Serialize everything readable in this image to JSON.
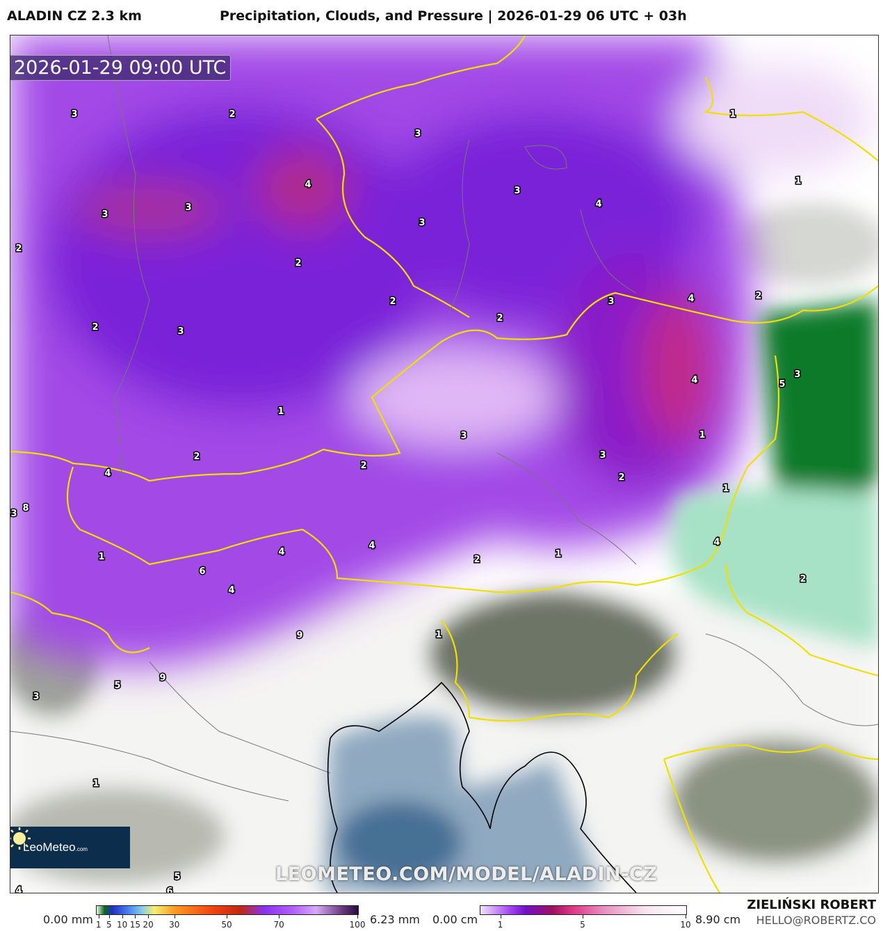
{
  "header": {
    "model": "ALADIN CZ 2.3 km",
    "title": "Precipitation, Clouds, and Pressure | 2026-01-29 06 UTC + 03h"
  },
  "map": {
    "valid_time": "2026-01-29 09:00 UTC",
    "watermark": "LEOMETEO.COM/MODEL/ALADIN-CZ",
    "logo": {
      "name": "LeoMeteo",
      "suffix": ".com"
    },
    "colors": {
      "precip_purple": "#8a2be2",
      "precip_magenta": "#c0307a",
      "snow_green": "#0a7a2a",
      "sea": "#5a7fa0",
      "clouds": "#a0a49a",
      "borders_country": "#f0e000"
    },
    "labels": [
      "3",
      "2",
      "4",
      "3",
      "3",
      "4",
      "1",
      "1",
      "3",
      "3",
      "3",
      "2",
      "2",
      "2",
      "3",
      "4",
      "2",
      "2",
      "3",
      "2",
      "5",
      "3",
      "1",
      "4",
      "3",
      "1",
      "2",
      "3",
      "4",
      "2",
      "1",
      "8",
      "3",
      "4",
      "1",
      "4",
      "4",
      "2",
      "1",
      "6",
      "4",
      "2",
      "9",
      "1",
      "9",
      "5",
      "3",
      "1",
      "5",
      "6",
      "4",
      "2"
    ]
  },
  "legend_precip": {
    "min_label": "0.00 mm",
    "max_label": "6.23 mm",
    "ticks": [
      "1",
      "5",
      "10",
      "15",
      "20",
      "30",
      "50",
      "70",
      "100"
    ]
  },
  "legend_snow": {
    "min_label": "0.00 cm",
    "max_label": "8.90 cm",
    "ticks": [
      "1",
      "5",
      "10"
    ]
  },
  "credits": {
    "author": "ZIELIŃSKI ROBERT",
    "email": "HELLO@ROBERTZ.CO"
  }
}
